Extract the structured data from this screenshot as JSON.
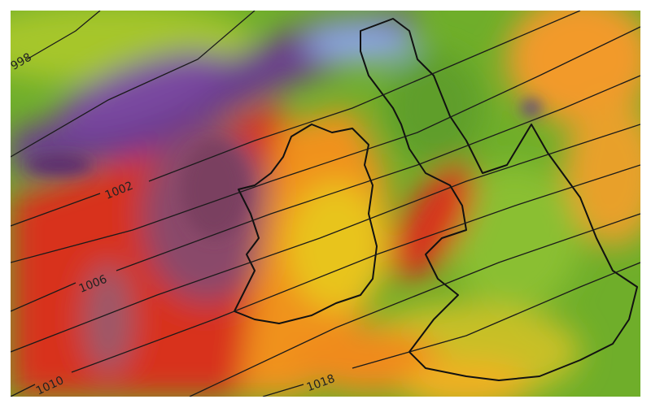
{
  "map": {
    "isobar_labels": [
      "998",
      "1002",
      "1006",
      "1010",
      "1018"
    ],
    "colors": {
      "calm": "#7bb82a",
      "moderate": "#e8d21f",
      "strong": "#f08a1c",
      "very_strong": "#d8321c",
      "extreme": "#8a4a6a",
      "northern_band": "#6a3a8f",
      "northern_band_light": "#9ab8e8",
      "coastline": "#111111",
      "isobar": "#1a1a1a"
    }
  }
}
